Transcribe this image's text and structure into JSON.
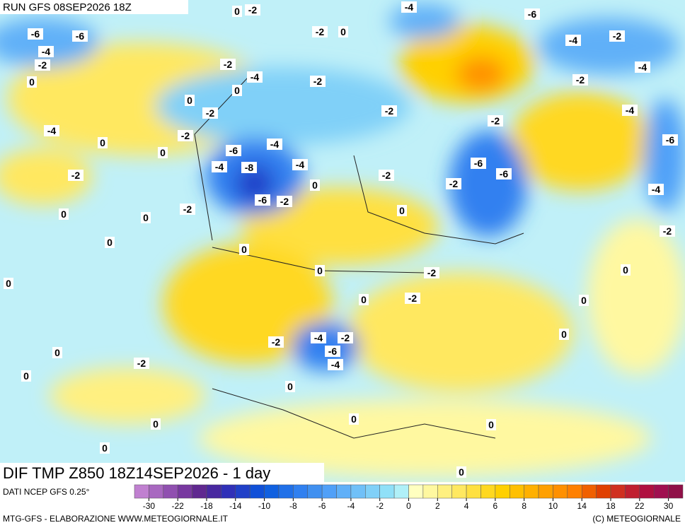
{
  "header": {
    "run": "RUN GFS 08SEP2026 18Z"
  },
  "map": {
    "title": "DIF TMP Z850 18Z14SEP2026 - 1 day",
    "contour_labels": [
      -6,
      -6,
      -4,
      -2,
      0,
      -2,
      0,
      -2,
      0,
      -2,
      -4,
      0,
      -2,
      0,
      -2,
      -2,
      -4,
      0,
      0,
      -6,
      -4,
      -8,
      -4,
      -4,
      -2,
      -6,
      -2,
      -2,
      0,
      0,
      0,
      0,
      0,
      0,
      0,
      -2,
      -2,
      0,
      -4,
      -2,
      -2,
      -6,
      -4,
      0,
      -2,
      0,
      0,
      0,
      0,
      0,
      0,
      0,
      0,
      -2,
      -4,
      -6,
      -4,
      -2,
      -4,
      -4,
      -2,
      -6,
      -2,
      -6,
      -6,
      -2,
      -2,
      0,
      -2,
      -4,
      0,
      0
    ]
  },
  "legend": {
    "source": "DATI NCEP GFS 0.25°",
    "colors": [
      "#c080d0",
      "#a868c0",
      "#9050b0",
      "#7838a0",
      "#602890",
      "#4828a0",
      "#3030b8",
      "#2040c8",
      "#1050d8",
      "#1060e0",
      "#2070e8",
      "#3080f0",
      "#4090f0",
      "#50a0f8",
      "#60b0f8",
      "#70c0f8",
      "#80d0f8",
      "#90e0f8",
      "#b0f0f8",
      "#ffffc0",
      "#fff8a0",
      "#fff080",
      "#ffe860",
      "#ffe040",
      "#ffd820",
      "#ffd000",
      "#ffc000",
      "#ffb000",
      "#ffa000",
      "#ff9000",
      "#ff8000",
      "#f06000",
      "#e04000",
      "#d03020",
      "#c02030",
      "#b01040",
      "#a01050",
      "#901048"
    ],
    "ticks": [
      -30,
      -22,
      -18,
      -14,
      -10,
      -8,
      -6,
      -4,
      -2,
      0,
      2,
      4,
      6,
      8,
      10,
      14,
      18,
      22,
      30
    ]
  },
  "footer": {
    "left": "MTG-GFS - ELABORAZIONE WWW.METEOGIORNALE.IT",
    "right": "(C) METEOGIORNALE"
  }
}
